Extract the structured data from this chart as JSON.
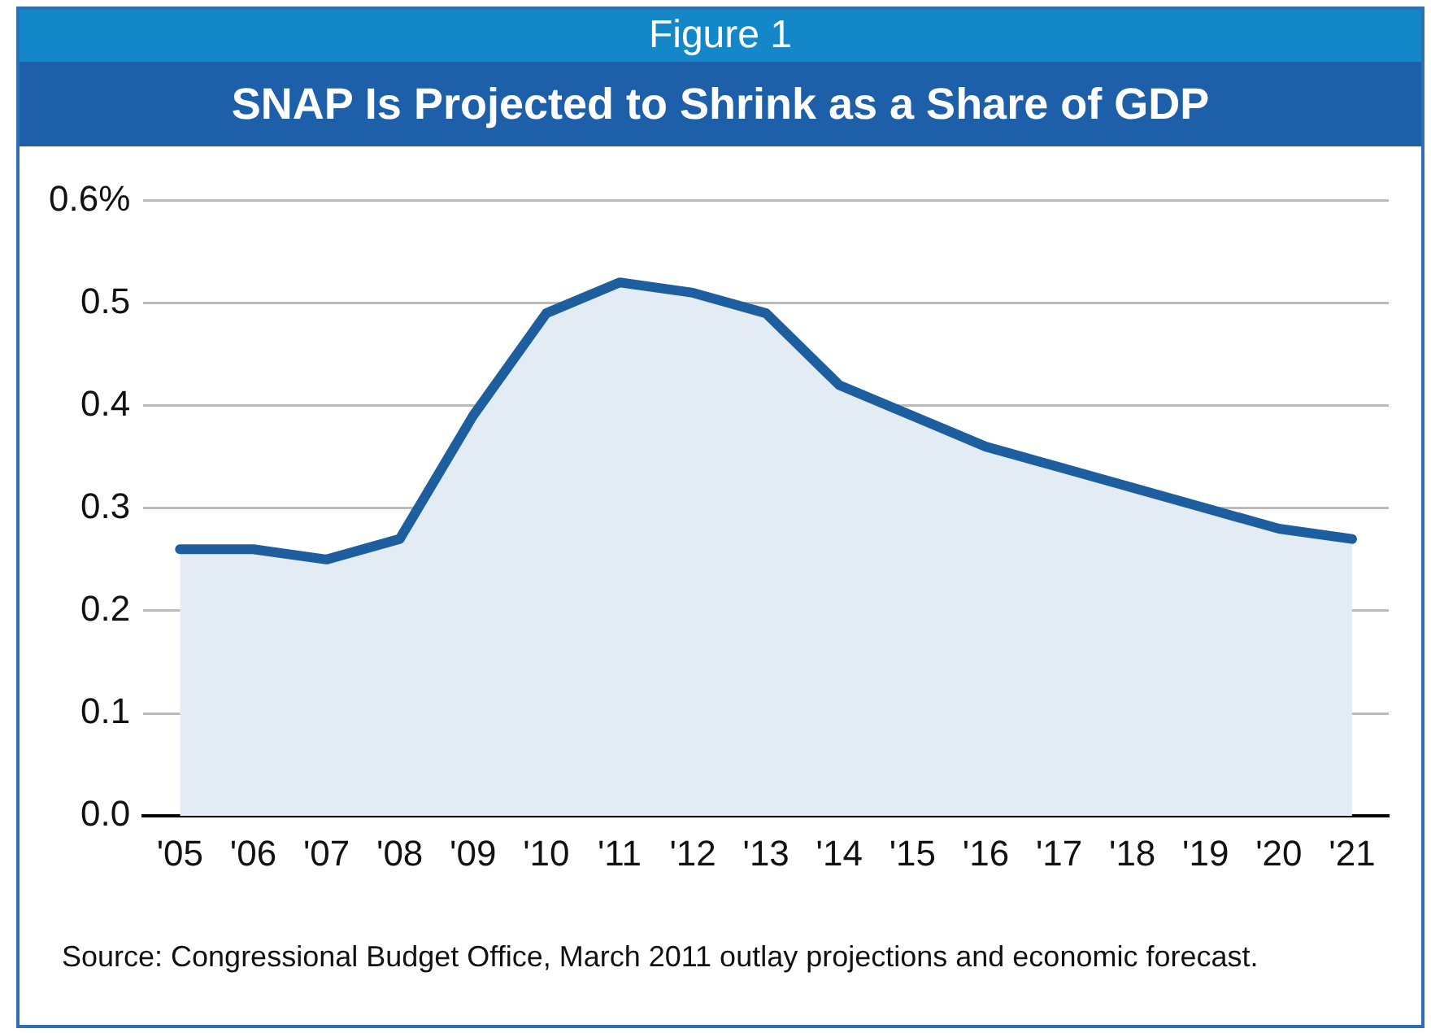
{
  "chart_data": {
    "type": "area",
    "title": "Figure 1",
    "subtitle": "SNAP Is Projected to Shrink as a Share of GDP",
    "categories": [
      "'05",
      "'06",
      "'07",
      "'08",
      "'09",
      "'10",
      "'11",
      "'12",
      "'13",
      "'14",
      "'15",
      "'16",
      "'17",
      "'18",
      "'19",
      "'20",
      "'21"
    ],
    "series": [
      {
        "color": "#1d5e9e",
        "values": [
          0.26,
          0.26,
          0.25,
          0.27,
          0.39,
          0.49,
          0.52,
          0.51,
          0.49,
          0.42,
          0.39,
          0.36,
          0.34,
          0.32,
          0.3,
          0.28,
          0.27
        ]
      }
    ],
    "ylim": [
      0,
      0.6
    ],
    "yticks": [
      {
        "value": 0,
        "label": "0.0"
      },
      0.1,
      0.2,
      0.3,
      0.4,
      0.5,
      {
        "value": 0.6,
        "label": "0.6%"
      }
    ],
    "grid": "y",
    "legend": false,
    "annotations": [
      "Source: Congressional Budget Office, March 2011 outlay projections and economic forecast."
    ]
  }
}
